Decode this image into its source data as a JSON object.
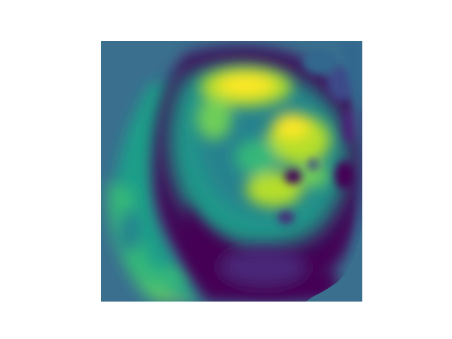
{
  "image": {
    "description_type": "scientific-heatmap",
    "colormap": "viridis",
    "background_color": "#ffffff",
    "plot_background_color": "#3a6f8e",
    "palette": [
      "#440154",
      "#482778",
      "#3e4a89",
      "#31688e",
      "#26828e",
      "#1f9e89",
      "#35b779",
      "#6ece58",
      "#b5de2b",
      "#fde725"
    ]
  }
}
